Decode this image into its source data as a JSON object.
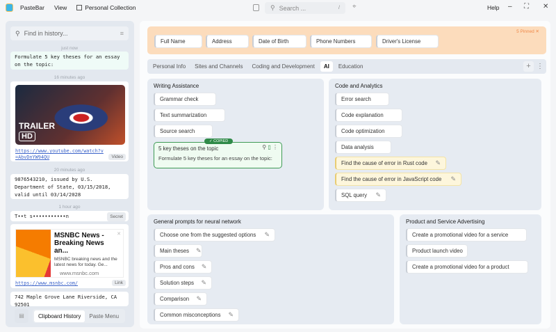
{
  "app": {
    "name": "PasteBar",
    "menu_view": "View",
    "collection": "Personal Collection"
  },
  "topbar": {
    "search_placeholder": "Search ...",
    "search_shortcut": "/",
    "help": "Help"
  },
  "history": {
    "search_placeholder": "Find in history...",
    "items": [
      {
        "time": "just now",
        "text": "Formulate 5 key theses for an essay on the topic:"
      },
      {
        "time": "16 minutes ago",
        "image_text": "TRAILER",
        "image_badge": "HD",
        "link": "https://www.youtube.com/watch?v=AbvDnYW94QU",
        "tag": "Video"
      },
      {
        "time": "20 minutes ago",
        "text": "9876543210, issued by U.S. Department of State, 03/15/2018, valid until 03/14/2028"
      },
      {
        "time": "1 hour ago",
        "text": "T••t s•••••••••••n",
        "tag": "Secret"
      },
      {
        "title": "MSNBC News - Breaking News an...",
        "desc": "MSNBC breaking news and the latest news for today. Ge...",
        "site": "www.msnbc.com",
        "link": "https://www.msnbc.com/",
        "tag": "Link"
      },
      {
        "text": "742 Maple Grove Lane Riverside, CA 92501"
      }
    ],
    "bottom_tabs": [
      "Clipboard History",
      "Paste Menu"
    ]
  },
  "pinned": {
    "label": "5 Pinned",
    "items": [
      "Full Name",
      "Address",
      "Date of Birth",
      "Phone Numbers",
      "Driver's License"
    ],
    "color": "#fcdcbc"
  },
  "tabs": {
    "items": [
      "Personal Info",
      "Sites and Channels",
      "Coding and Development",
      "AI",
      "Education"
    ],
    "active": "AI"
  },
  "boards": {
    "writing": {
      "title": "Writing Assistance",
      "items": [
        "Grammar check",
        "Text summarization",
        "Source search"
      ],
      "copied": {
        "badge": "✓ COPIED",
        "title": "5 key theses on the topic",
        "body": "Formulate 5 key theses for an essay on the topic:"
      }
    },
    "code": {
      "title": "Code and Analytics",
      "items": [
        "Error search",
        "Code explanation",
        "Code optimization",
        "Data analysis",
        "Find the cause of error in Rust code",
        "Find the cause of error in JavaScript code",
        "SQL query"
      ]
    },
    "general": {
      "title": "General prompts for neural network",
      "items": [
        "Choose one from the suggested options",
        "Main theses",
        "Pros and cons",
        "Solution steps",
        "Comparison",
        "Common misconceptions"
      ]
    },
    "product": {
      "title": "Product and Service Advertising",
      "items": [
        "Create a promotional video for a service",
        "Product launch video",
        "Create a promotional video for a product"
      ]
    }
  }
}
